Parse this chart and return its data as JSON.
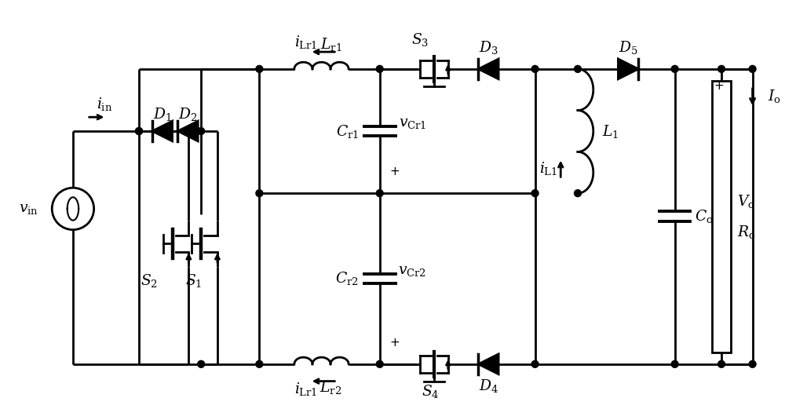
{
  "bg_color": "#ffffff",
  "line_color": "#000000",
  "line_width": 2.0,
  "figsize": [
    10.0,
    5.21
  ],
  "dpi": 100,
  "xlim": [
    0,
    10
  ],
  "ylim": [
    0,
    5.21
  ]
}
